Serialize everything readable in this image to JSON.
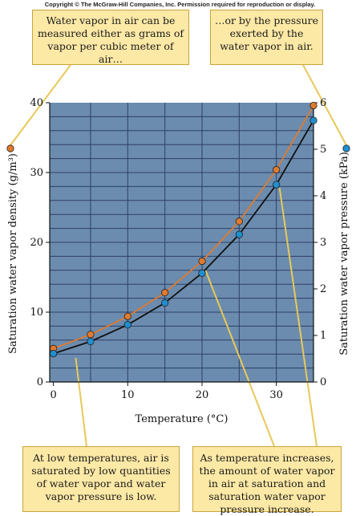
{
  "copyright": "Copyright © The McGraw-Hill Companies, Inc. Permission required for reproduction or display.",
  "callouts": {
    "top_left": "Water vapor in air can be measured either as grams of vapor per cubic meter of air…",
    "top_right": "…or by the pressure exerted by the water vapor in air.",
    "bottom_left": "At low temperatures, air is saturated by low quantities of water vapor and water vapor pressure is low.",
    "bottom_right": "As temperature increases, the amount of water vapor in air at saturation and saturation water vapor pressure increase."
  },
  "colors": {
    "plot_background": "#6b8cae",
    "grid": "#2f3f66",
    "density_series": "#e07a2e",
    "pressure_series": "#1f8fd0",
    "pressure_line": "#111111",
    "callout_fill": "#fde9a6",
    "leader_line": "#e8c85a"
  },
  "chart_data": {
    "type": "line",
    "xlabel": "Temperature (°C)",
    "ylabel_left": "Saturation water vapor density (g/m³)",
    "ylabel_right": "Saturation water vapor pressure (kPa)",
    "xlim": [
      -0.5,
      35
    ],
    "ylim_left": [
      0,
      40
    ],
    "ylim_right": [
      0,
      6
    ],
    "xticks": [
      0,
      10,
      20,
      30
    ],
    "yticks_left": [
      0,
      10,
      20,
      30,
      40
    ],
    "yticks_right": [
      0,
      1,
      2,
      3,
      4,
      5,
      6
    ],
    "grid": true,
    "series": [
      {
        "axis": "left",
        "x": [
          0,
          5,
          10,
          15,
          20,
          25,
          30,
          35
        ],
        "values": [
          4.8,
          6.8,
          9.4,
          12.8,
          17.3,
          23.0,
          30.4,
          39.6
        ]
      },
      {
        "axis": "right",
        "x": [
          0,
          5,
          10,
          15,
          20,
          25,
          30,
          35
        ],
        "values": [
          0.61,
          0.87,
          1.23,
          1.7,
          2.34,
          3.17,
          4.24,
          5.62
        ]
      }
    ]
  }
}
